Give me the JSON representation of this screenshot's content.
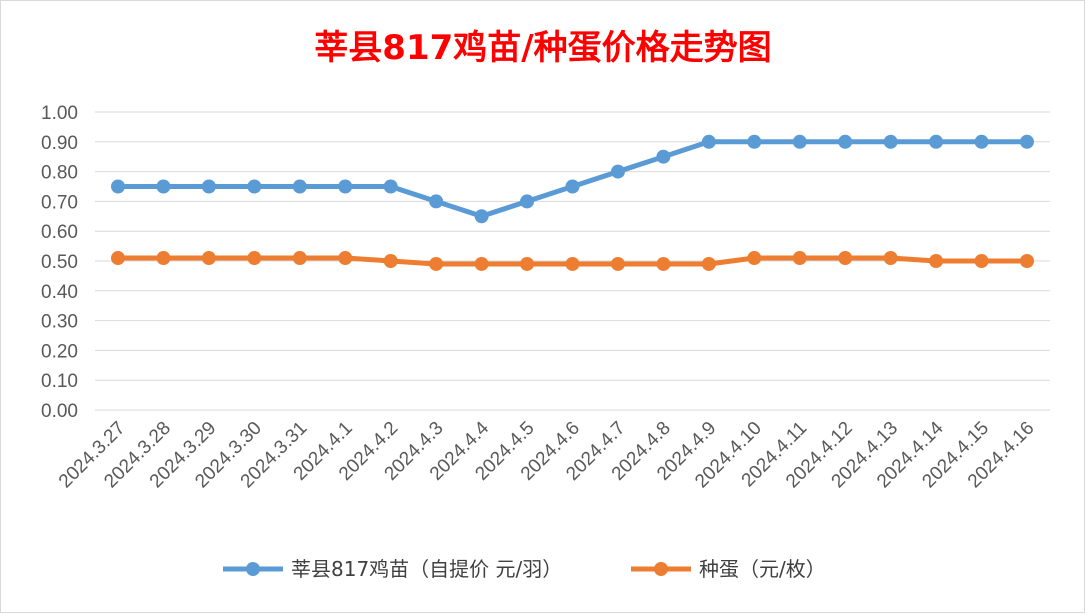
{
  "chart_data": {
    "type": "line",
    "title": "莘县817鸡苗/种蛋价格走势图",
    "xlabel": "",
    "ylabel": "",
    "ylim": [
      0,
      1.0
    ],
    "yticks": [
      "0.00",
      "0.10",
      "0.20",
      "0.30",
      "0.40",
      "0.50",
      "0.60",
      "0.70",
      "0.80",
      "0.90",
      "1.00"
    ],
    "grid": true,
    "legend_position": "bottom",
    "categories": [
      "2024.3.27",
      "2024.3.28",
      "2024.3.29",
      "2024.3.30",
      "2024.3.31",
      "2024.4.1",
      "2024.4.2",
      "2024.4.3",
      "2024.4.4",
      "2024.4.5",
      "2024.4.6",
      "2024.4.7",
      "2024.4.8",
      "2024.4.9",
      "2024.4.10",
      "2024.4.11",
      "2024.4.12",
      "2024.4.13",
      "2024.4.14",
      "2024.4.15",
      "2024.4.16"
    ],
    "series": [
      {
        "name": "莘县817鸡苗（自提价 元/羽）",
        "color": "#5b9bd5",
        "values": [
          0.75,
          0.75,
          0.75,
          0.75,
          0.75,
          0.75,
          0.75,
          0.7,
          0.65,
          0.7,
          0.75,
          0.8,
          0.85,
          0.9,
          0.9,
          0.9,
          0.9,
          0.9,
          0.9,
          0.9,
          0.9
        ]
      },
      {
        "name": "种蛋（元/枚）",
        "color": "#ed7d31",
        "values": [
          0.51,
          0.51,
          0.51,
          0.51,
          0.51,
          0.51,
          0.5,
          0.49,
          0.49,
          0.49,
          0.49,
          0.49,
          0.49,
          0.49,
          0.51,
          0.51,
          0.51,
          0.51,
          0.5,
          0.5,
          0.5
        ]
      }
    ]
  }
}
